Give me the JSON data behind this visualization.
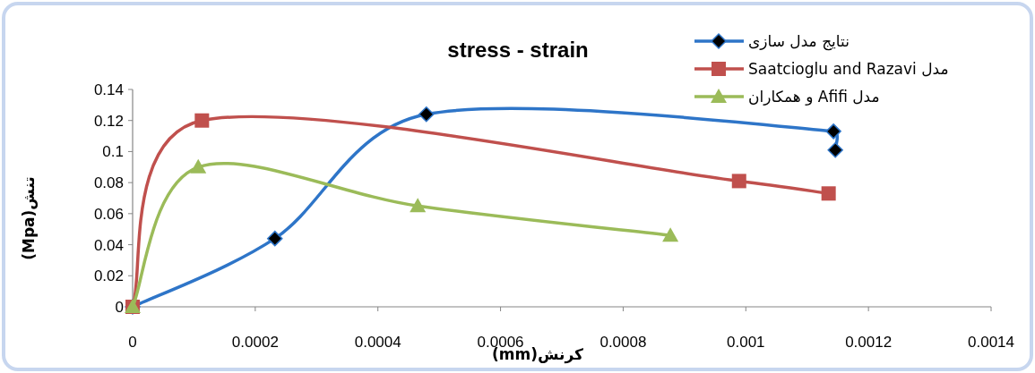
{
  "chart_data": {
    "type": "line",
    "title": "stress - strain",
    "xlabel": "(mm)کرنش",
    "ylabel": "(Mpa)تنش",
    "xlim": [
      0,
      0.0014
    ],
    "xticks": [
      0,
      0.0002,
      0.0004,
      0.0006,
      0.0008,
      0.001,
      0.0012,
      0.0014
    ],
    "ylim": [
      0,
      0.14
    ],
    "yticks": [
      0,
      0.02,
      0.04,
      0.06,
      0.08,
      0.1,
      0.12,
      0.14
    ],
    "legend": "top right",
    "grid": false,
    "series": [
      {
        "name": "نتایج مدل سازی",
        "color": "#2e75c8",
        "marker": "diamond",
        "x": [
          0,
          0.000232,
          0.000479,
          0.001143,
          0.001146
        ],
        "values": [
          0,
          0.044,
          0.124,
          0.113,
          0.101
        ]
      },
      {
        "name": "مدل Saatcioglu and Razavi",
        "color": "#c0504d",
        "marker": "square",
        "x": [
          0,
          0.000113,
          0.000989,
          0.001135
        ],
        "values": [
          0,
          0.12,
          0.081,
          0.073
        ]
      },
      {
        "name": "مدل Afifi و همکاران",
        "color": "#9bbb59",
        "marker": "triangle",
        "x": [
          0,
          0.000107,
          0.000465,
          0.000877
        ],
        "values": [
          0,
          0.09,
          0.065,
          0.046
        ]
      }
    ]
  }
}
